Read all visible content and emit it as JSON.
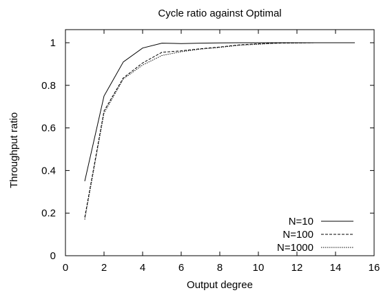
{
  "chart_data": {
    "type": "line",
    "title": "Cycle ratio against Optimal",
    "xlabel": "Output degree",
    "ylabel": "Throughput ratio",
    "xlim": [
      0,
      16
    ],
    "ylim": [
      0,
      1.05
    ],
    "xticks": [
      0,
      2,
      4,
      6,
      8,
      10,
      12,
      14,
      16
    ],
    "yticks": [
      0,
      0.2,
      0.4,
      0.6,
      0.8,
      1
    ],
    "xtick_labels": [
      "0",
      "2",
      "4",
      "6",
      "8",
      "10",
      "12",
      "14",
      "16"
    ],
    "ytick_labels": [
      "0",
      "0.2",
      "0.4",
      "0.6",
      "0.8",
      "1"
    ],
    "grid": false,
    "legend_position": "bottom-right",
    "series": [
      {
        "name": "N=10",
        "line_style": "solid",
        "x": [
          1,
          2,
          3,
          4,
          5,
          6,
          7,
          8,
          9,
          10,
          11,
          12,
          13,
          14,
          15
        ],
        "y": [
          0.35,
          0.75,
          0.91,
          0.975,
          0.998,
          0.996,
          0.998,
          0.999,
          1.0,
          1.0,
          1.0,
          1.0,
          1.0,
          1.0,
          1.0
        ]
      },
      {
        "name": "N=100",
        "line_style": "dashed",
        "x": [
          1,
          2,
          3,
          4,
          5,
          6,
          7,
          8,
          9,
          10,
          11,
          12,
          13,
          14,
          15
        ],
        "y": [
          0.18,
          0.68,
          0.835,
          0.905,
          0.955,
          0.962,
          0.972,
          0.98,
          0.99,
          0.995,
          0.998,
          0.999,
          1.0,
          1.0,
          1.0
        ]
      },
      {
        "name": "N=1000",
        "line_style": "dotted",
        "x": [
          1,
          2,
          3,
          4,
          5,
          6,
          7,
          8,
          9,
          10,
          11,
          12,
          13,
          14,
          15
        ],
        "y": [
          0.17,
          0.67,
          0.83,
          0.895,
          0.94,
          0.958,
          0.97,
          0.978,
          0.988,
          0.993,
          0.998,
          0.999,
          1.0,
          1.0,
          1.0
        ]
      }
    ]
  }
}
